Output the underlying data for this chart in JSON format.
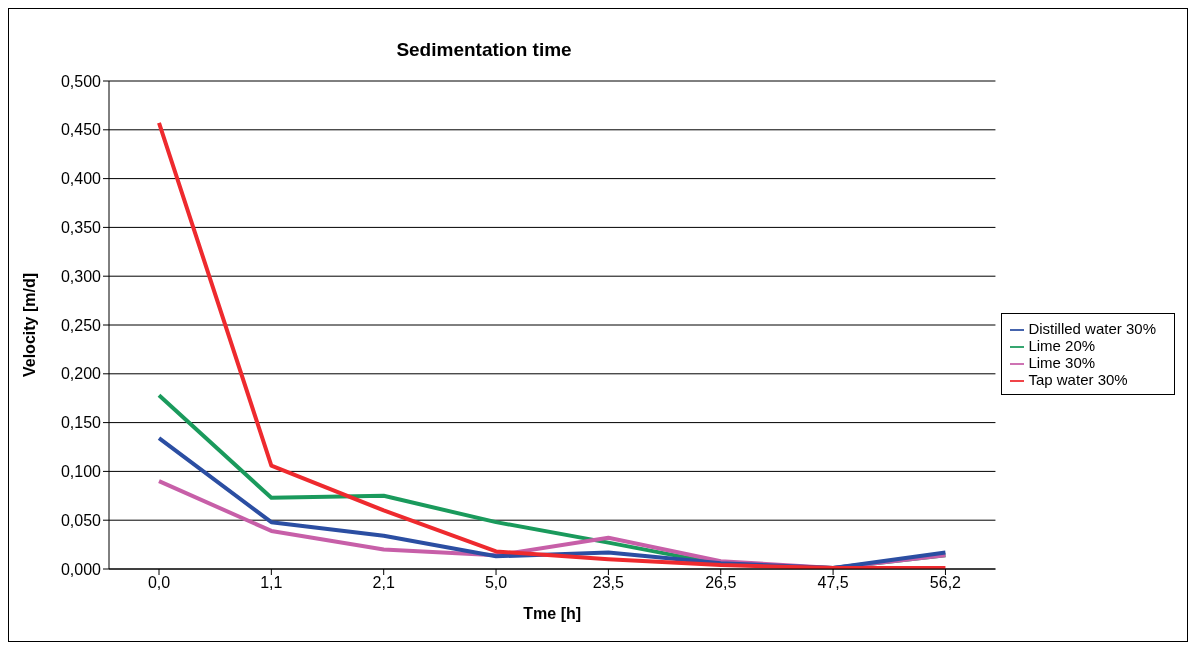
{
  "chart_data": {
    "type": "line",
    "title": "Sedimentation time",
    "xlabel": "Tme [h]",
    "ylabel": "Velocity [m/d]",
    "categories": [
      "0,0",
      "1,1",
      "2,1",
      "5,0",
      "23,5",
      "26,5",
      "47,5",
      "56,2"
    ],
    "series": [
      {
        "name": "Lime 20%",
        "color": "#1a9a5c",
        "values": [
          0.178,
          0.073,
          0.075,
          0.048,
          0.027,
          0.005,
          0.001,
          0.014
        ]
      },
      {
        "name": "Lime 30%",
        "color": "#c75fa8",
        "values": [
          0.09,
          0.039,
          0.02,
          0.014,
          0.032,
          0.008,
          0.001,
          0.014
        ]
      },
      {
        "name": "Distilled water 30%",
        "color": "#2b4ea2",
        "values": [
          0.134,
          0.048,
          0.034,
          0.013,
          0.017,
          0.006,
          0.001,
          0.017
        ]
      },
      {
        "name": "Tap water 30%",
        "color": "#ee2a2e",
        "values": [
          0.457,
          0.106,
          0.06,
          0.018,
          0.01,
          0.004,
          0.001,
          0.001
        ]
      }
    ],
    "ylim": [
      0,
      0.5
    ],
    "yticks": [
      {
        "value": 0,
        "label": "0,000"
      },
      {
        "value": 0.05,
        "label": "0,050"
      },
      {
        "value": 0.1,
        "label": "0,100"
      },
      {
        "value": 0.15,
        "label": "0,150"
      },
      {
        "value": 0.2,
        "label": "0,200"
      },
      {
        "value": 0.25,
        "label": "0,250"
      },
      {
        "value": 0.3,
        "label": "0,300"
      },
      {
        "value": 0.35,
        "label": "0,350"
      },
      {
        "value": 0.4,
        "label": "0,400"
      },
      {
        "value": 0.45,
        "label": "0,450"
      },
      {
        "value": 0.5,
        "label": "0,500"
      }
    ],
    "grid": "y",
    "legend": "right",
    "marker": "none",
    "line_style": "solid"
  }
}
